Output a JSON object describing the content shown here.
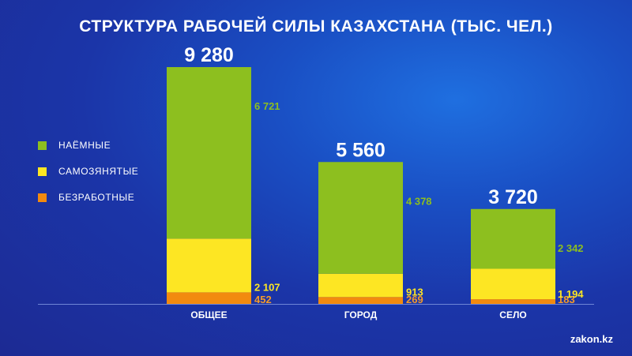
{
  "title": "СТРУКТУРА РАБОЧЕЙ СИЛЫ КАЗАХСТАНА (ТЫС. ЧЕЛ.)",
  "watermark": "zakon.kz",
  "legend": [
    {
      "label": "НАЁМНЫЕ",
      "color": "#8dbf1f"
    },
    {
      "label": "САМОЗЯНЯТЫЕ",
      "color": "#fde623"
    },
    {
      "label": "БЕЗРАБОТНЫЕ",
      "color": "#f28a0f"
    }
  ],
  "chart_data": {
    "type": "bar",
    "stacked": true,
    "title": "СТРУКТУРА РАБОЧЕЙ СИЛЫ КАЗАХСТАНА (ТЫС. ЧЕЛ.)",
    "categories": [
      "ОБЩЕЕ",
      "ГОРОД",
      "СЕЛО"
    ],
    "totals": [
      9280,
      5560,
      3720
    ],
    "total_labels": [
      "9 280",
      "5 560",
      "3 720"
    ],
    "series": [
      {
        "name": "БЕЗРАБОТНЫЕ",
        "color": "#f28a0f",
        "label_color": "#f39a2a",
        "values": [
          452,
          269,
          183
        ],
        "labels": [
          "452",
          "269",
          "183"
        ]
      },
      {
        "name": "САМОЗЯНЯТЫЕ",
        "color": "#fde623",
        "label_color": "#fde623",
        "values": [
          2107,
          913,
          1194
        ],
        "labels": [
          "2 107",
          "913",
          "1 194"
        ]
      },
      {
        "name": "НАЁМНЫЕ",
        "color": "#8dbf1f",
        "label_color": "#8dbf1f",
        "values": [
          6721,
          4378,
          2342
        ],
        "labels": [
          "6 721",
          "4 378",
          "2 342"
        ]
      }
    ],
    "legend_position": "left",
    "grid": false
  }
}
